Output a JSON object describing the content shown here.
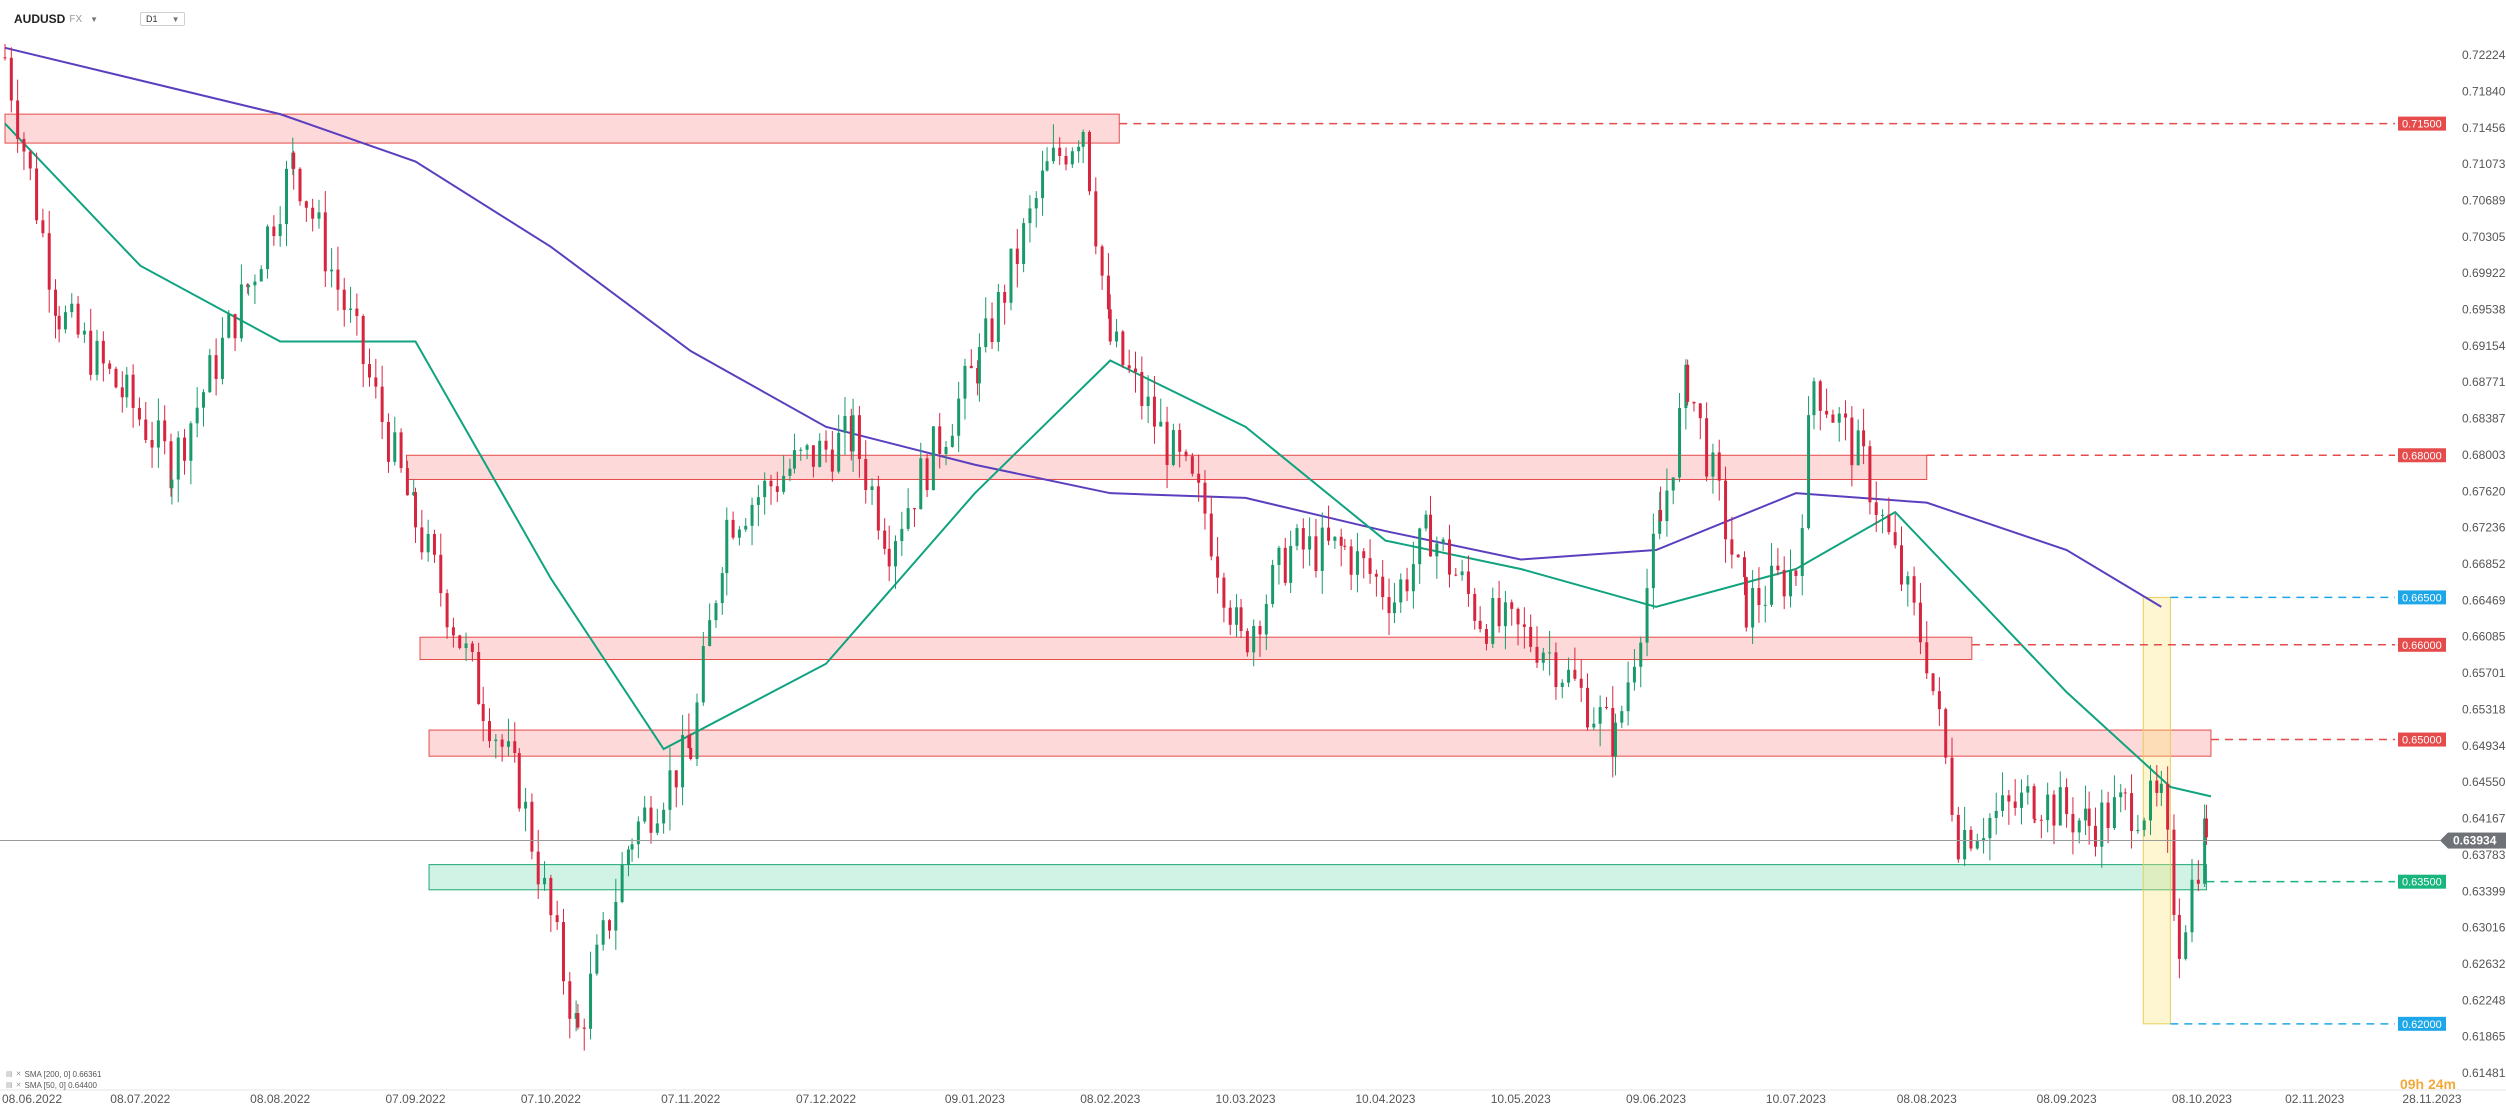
{
  "header": {
    "symbol": "AUDUSD",
    "market": "FX",
    "timeframe": "D1"
  },
  "indicators": [
    {
      "label": "SMA [200, 0] 0.66361",
      "color": "#5b3fbf"
    },
    {
      "label": "SMA [50, 0] 0.64400",
      "color": "#10a37f"
    }
  ],
  "countdown": "09h 24m",
  "colors": {
    "bull": "#1a9a6a",
    "bear": "#d8253f",
    "resistance": "#e64b4b",
    "support": "#18b57d",
    "target": "#1ea7e8",
    "sma200": "#5b3fbf",
    "sma50": "#10a37f"
  },
  "chart_data": {
    "type": "candlestick",
    "title": "AUDUSD",
    "ylim": [
      0.61481,
      0.72607
    ],
    "y_ticks": [
      "0.72224",
      "0.71840",
      "0.71456",
      "0.71073",
      "0.70689",
      "0.70305",
      "0.69922",
      "0.69538",
      "0.69154",
      "0.68771",
      "0.68387",
      "0.68003",
      "0.67620",
      "0.67236",
      "0.66852",
      "0.66469",
      "0.66085",
      "0.65701",
      "0.65318",
      "0.64934",
      "0.64550",
      "0.64167",
      "0.63783",
      "0.63399",
      "0.63016",
      "0.62632",
      "0.62248",
      "0.61865",
      "0.61481"
    ],
    "x_ticks": [
      "08.06.2022",
      "08.07.2022",
      "08.08.2022",
      "07.09.2022",
      "07.10.2022",
      "07.11.2022",
      "07.12.2022",
      "09.01.2023",
      "08.02.2023",
      "10.03.2023",
      "10.04.2023",
      "10.05.2023",
      "09.06.2023",
      "10.07.2023",
      "08.08.2023",
      "08.09.2023",
      "08.10.2023",
      "02.11.2023",
      "28.11.2023"
    ],
    "current_price": "0.63934",
    "levels": [
      {
        "value": 0.715,
        "label": "0.71500",
        "kind": "resistance"
      },
      {
        "value": 0.68,
        "label": "0.68000",
        "kind": "resistance"
      },
      {
        "value": 0.665,
        "label": "0.66500",
        "kind": "target"
      },
      {
        "value": 0.66,
        "label": "0.66000",
        "kind": "resistance"
      },
      {
        "value": 0.65,
        "label": "0.65000",
        "kind": "resistance"
      },
      {
        "value": 0.635,
        "label": "0.63500",
        "kind": "support"
      },
      {
        "value": 0.62,
        "label": "0.62000",
        "kind": "target"
      }
    ],
    "zones": [
      {
        "kind": "resistance",
        "from": "08.06.2022",
        "to": "10.02.2023",
        "low": 0.714,
        "high": 0.716
      },
      {
        "kind": "resistance",
        "from": "05.09.2022",
        "to": "08.08.2023",
        "low": 0.6785,
        "high": 0.68
      },
      {
        "kind": "resistance",
        "from": "08.09.2022",
        "to": "18.08.2023",
        "low": 0.6595,
        "high": 0.6608
      },
      {
        "kind": "resistance",
        "from": "10.09.2022",
        "to": "10.10.2023",
        "low": 0.6493,
        "high": 0.651
      },
      {
        "kind": "support",
        "from": "10.09.2022",
        "to": "09.10.2023",
        "low": 0.6352,
        "high": 0.6368
      },
      {
        "kind": "target",
        "from": "25.09.2023",
        "to": "01.10.2023",
        "low": 0.62,
        "high": 0.665
      }
    ],
    "path": [
      [
        "08.06.2022",
        0.722
      ],
      [
        "20.06.2022",
        0.695
      ],
      [
        "05.07.2022",
        0.686
      ],
      [
        "15.07.2022",
        0.679
      ],
      [
        "01.08.2022",
        0.698
      ],
      [
        "11.08.2022",
        0.711
      ],
      [
        "25.08.2022",
        0.692
      ],
      [
        "07.09.2022",
        0.673
      ],
      [
        "22.09.2022",
        0.654
      ],
      [
        "30.09.2022",
        0.645
      ],
      [
        "13.10.2022",
        0.619
      ],
      [
        "25.10.2022",
        0.64
      ],
      [
        "07.11.2022",
        0.649
      ],
      [
        "15.11.2022",
        0.673
      ],
      [
        "30.11.2022",
        0.679
      ],
      [
        "13.12.2022",
        0.682
      ],
      [
        "21.12.2022",
        0.671
      ],
      [
        "10.01.2023",
        0.69
      ],
      [
        "25.01.2023",
        0.71
      ],
      [
        "02.02.2023",
        0.715
      ],
      [
        "08.02.2023",
        0.692
      ],
      [
        "01.03.2023",
        0.674
      ],
      [
        "09.03.2023",
        0.66
      ],
      [
        "20.03.2023",
        0.67
      ],
      [
        "01.04.2023",
        0.67
      ],
      [
        "12.04.2023",
        0.665
      ],
      [
        "20.04.2023",
        0.672
      ],
      [
        "01.05.2023",
        0.663
      ],
      [
        "15.05.2023",
        0.66
      ],
      [
        "31.05.2023",
        0.65
      ],
      [
        "10.06.2023",
        0.673
      ],
      [
        "16.06.2023",
        0.688
      ],
      [
        "29.06.2023",
        0.664
      ],
      [
        "10.07.2023",
        0.668
      ],
      [
        "14.07.2023",
        0.688
      ],
      [
        "25.07.2023",
        0.679
      ],
      [
        "08.08.2023",
        0.659
      ],
      [
        "15.08.2023",
        0.64
      ],
      [
        "01.09.2023",
        0.644
      ],
      [
        "13.09.2023",
        0.641
      ],
      [
        "21.09.2023",
        0.643
      ],
      [
        "29.09.2023",
        0.643
      ],
      [
        "03.10.2023",
        0.629
      ],
      [
        "09.10.2023",
        0.641
      ],
      [
        "10.10.2023",
        0.6393
      ]
    ],
    "sma200": [
      [
        "08.06.2022",
        0.723
      ],
      [
        "08.08.2022",
        0.716
      ],
      [
        "07.09.2022",
        0.711
      ],
      [
        "07.10.2022",
        0.702
      ],
      [
        "07.11.2022",
        0.691
      ],
      [
        "07.12.2022",
        0.683
      ],
      [
        "09.01.2023",
        0.679
      ],
      [
        "08.02.2023",
        0.676
      ],
      [
        "10.03.2023",
        0.6755
      ],
      [
        "10.04.2023",
        0.672
      ],
      [
        "10.05.2023",
        0.669
      ],
      [
        "09.06.2023",
        0.67
      ],
      [
        "10.07.2023",
        0.676
      ],
      [
        "08.08.2023",
        0.675
      ],
      [
        "08.09.2023",
        0.67
      ],
      [
        "29.09.2023",
        0.664
      ]
    ],
    "sma50": [
      [
        "08.06.2022",
        0.715
      ],
      [
        "08.07.2022",
        0.7
      ],
      [
        "08.08.2022",
        0.692
      ],
      [
        "07.09.2022",
        0.692
      ],
      [
        "07.10.2022",
        0.667
      ],
      [
        "01.11.2022",
        0.649
      ],
      [
        "07.12.2022",
        0.658
      ],
      [
        "09.01.2023",
        0.676
      ],
      [
        "08.02.2023",
        0.69
      ],
      [
        "10.03.2023",
        0.683
      ],
      [
        "10.04.2023",
        0.671
      ],
      [
        "10.05.2023",
        0.668
      ],
      [
        "09.06.2023",
        0.664
      ],
      [
        "10.07.2023",
        0.668
      ],
      [
        "01.08.2023",
        0.674
      ],
      [
        "08.09.2023",
        0.655
      ],
      [
        "01.10.2023",
        0.645
      ],
      [
        "10.10.2023",
        0.644
      ]
    ]
  }
}
